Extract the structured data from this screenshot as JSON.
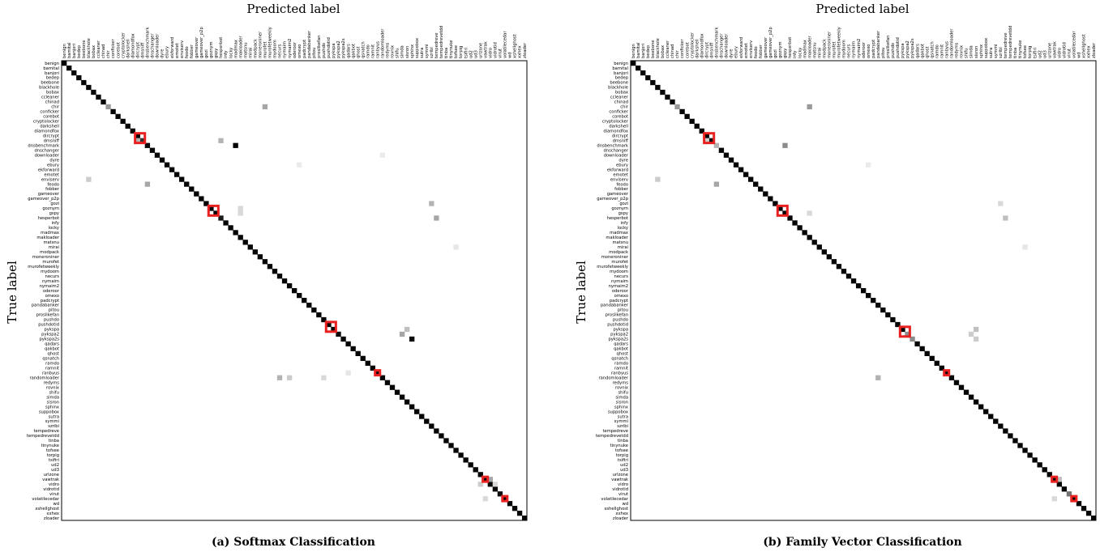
{
  "labels": [
    "benign",
    "bamital",
    "banjori",
    "bedep",
    "beebone",
    "blackhole",
    "bobax",
    "ccleaner",
    "chinad",
    "chir",
    "conficker",
    "corebot",
    "cryptolocker",
    "darkshell",
    "diamondfox",
    "dircrypt",
    "dmsniff",
    "dnsbenchmark",
    "dnschanger",
    "downloader",
    "dyre",
    "ebury",
    "ekforward",
    "emotet",
    "enviserv",
    "feodo",
    "fobber",
    "gameover",
    "gameover_p2p",
    "gozi",
    "goznym",
    "gspy",
    "hesperbot",
    "infy",
    "locky",
    "madmax",
    "makloader",
    "matsnu",
    "mirai",
    "modpack",
    "moneroniner",
    "murofet",
    "murofetweekly",
    "mydoom",
    "necurs",
    "nymaim",
    "nymaim2",
    "oderoor",
    "omexo",
    "padcrypt",
    "pandabanker",
    "pitou",
    "proslikefan",
    "pushdo",
    "pushdotid",
    "pykspa",
    "pykspa2",
    "pykspa2s",
    "qadars",
    "qakbot",
    "qhost",
    "qsnatch",
    "ramdo",
    "ramnit",
    "ranbyus",
    "randomloader",
    "redyms",
    "rovnix",
    "shifu",
    "simda",
    "sisron",
    "sphinx",
    "suppobox",
    "sutra",
    "symmi",
    "szribi",
    "tempedreve",
    "tempedrevetdd",
    "tinba",
    "tinynuke",
    "tofsee",
    "torpig",
    "tsifiri",
    "ud2",
    "ud3",
    "urlzone",
    "vawtrak",
    "vidro",
    "vidrotid",
    "virut",
    "volatilecedar",
    "wd",
    "xshellghost",
    "xxhex",
    "zloader"
  ],
  "charts": [
    {
      "id": "softmax",
      "caption": "(a) Softmax Classification",
      "xlabel": "Predicted label",
      "ylabel": "True label"
    },
    {
      "id": "family_vector",
      "caption": "(b) Family Vector Classification",
      "xlabel": "Predicted label",
      "ylabel": "True label"
    }
  ],
  "chart_data": [
    {
      "type": "heatmap",
      "title": "(a) Softmax Classification",
      "xlabel": "Predicted label",
      "ylabel": "True label",
      "value_range": [
        0,
        1
      ],
      "colormap": "grayscale: white = 0, black = 1",
      "diagonal_default": 0.98,
      "diagonal_overrides": [
        [
          9,
          0.4
        ],
        [
          16,
          0.8
        ],
        [
          32,
          0.9
        ],
        [
          56,
          0.95
        ],
        [
          89,
          0.95
        ]
      ],
      "off_diagonal": [
        [
          16,
          15,
          0.3
        ],
        [
          16,
          32,
          0.3
        ],
        [
          17,
          35,
          0.98
        ],
        [
          9,
          41,
          0.35
        ],
        [
          29,
          75,
          0.3
        ],
        [
          32,
          76,
          0.35
        ],
        [
          31,
          36,
          0.15
        ],
        [
          30,
          36,
          0.15
        ],
        [
          55,
          70,
          0.25
        ],
        [
          57,
          71,
          0.95
        ],
        [
          56,
          69,
          0.35
        ],
        [
          64,
          58,
          0.1
        ],
        [
          65,
          53,
          0.15
        ],
        [
          65,
          44,
          0.3
        ],
        [
          65,
          46,
          0.2
        ],
        [
          86,
          87,
          0.35
        ],
        [
          87,
          85,
          0.2
        ],
        [
          87,
          88,
          0.15
        ],
        [
          90,
          86,
          0.15
        ],
        [
          24,
          5,
          0.2
        ],
        [
          25,
          17,
          0.35
        ],
        [
          38,
          80,
          0.1
        ],
        [
          21,
          48,
          0.08
        ],
        [
          19,
          65,
          0.08
        ]
      ],
      "highlights": [
        [
          15,
          17
        ],
        [
          30,
          32
        ],
        [
          54,
          56
        ],
        [
          64,
          65
        ],
        [
          86,
          87
        ],
        [
          90,
          91
        ]
      ],
      "highlight_color": "#e8201f"
    },
    {
      "type": "heatmap",
      "title": "(b) Family Vector Classification",
      "xlabel": "Predicted label",
      "ylabel": "True label",
      "value_range": [
        0,
        1
      ],
      "colormap": "grayscale: white = 0, black = 1",
      "diagonal_default": 0.98,
      "diagonal_overrides": [
        [
          9,
          0.4
        ],
        [
          16,
          0.95
        ],
        [
          17,
          0.3
        ],
        [
          56,
          0.45
        ],
        [
          57,
          0.45
        ],
        [
          89,
          0.55
        ]
      ],
      "off_diagonal": [
        [
          16,
          15,
          0.2
        ],
        [
          17,
          31,
          0.45
        ],
        [
          9,
          36,
          0.4
        ],
        [
          25,
          17,
          0.35
        ],
        [
          29,
          75,
          0.15
        ],
        [
          32,
          76,
          0.25
        ],
        [
          31,
          36,
          0.15
        ],
        [
          55,
          70,
          0.25
        ],
        [
          57,
          70,
          0.2
        ],
        [
          56,
          69,
          0.2
        ],
        [
          65,
          50,
          0.3
        ],
        [
          86,
          87,
          0.25
        ],
        [
          90,
          86,
          0.15
        ],
        [
          21,
          48,
          0.08
        ],
        [
          38,
          80,
          0.1
        ],
        [
          24,
          5,
          0.2
        ]
      ],
      "highlights": [
        [
          15,
          17
        ],
        [
          30,
          32
        ],
        [
          55,
          57
        ],
        [
          64,
          65
        ],
        [
          86,
          87
        ],
        [
          90,
          91
        ]
      ],
      "highlight_color": "#e8201f"
    }
  ]
}
